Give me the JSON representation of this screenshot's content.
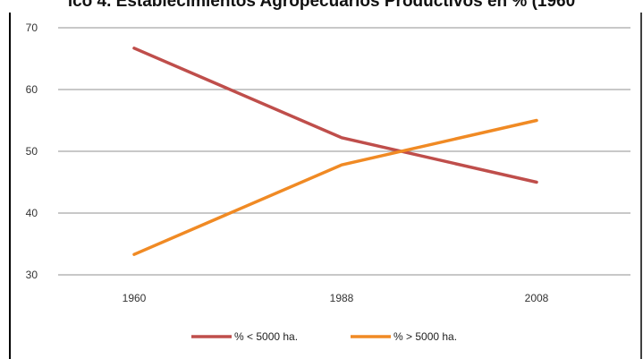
{
  "chart_data": {
    "type": "line",
    "title": "ico 4. Establecimientos Agropecuarios Productivos en % (1960",
    "xlabel": "",
    "ylabel": "",
    "categories": [
      "1960",
      "1988",
      "2008"
    ],
    "ylim": [
      30,
      70
    ],
    "yticks": [
      30,
      40,
      50,
      60,
      70
    ],
    "grid": true,
    "legend_position": "bottom",
    "series": [
      {
        "name": "% < 5000 ha.",
        "values": [
          66.7,
          52.2,
          45.0
        ],
        "color": "#bf4e4b"
      },
      {
        "name": "% > 5000 ha.",
        "values": [
          33.3,
          47.8,
          55.0
        ],
        "color": "#f08a24"
      }
    ]
  }
}
